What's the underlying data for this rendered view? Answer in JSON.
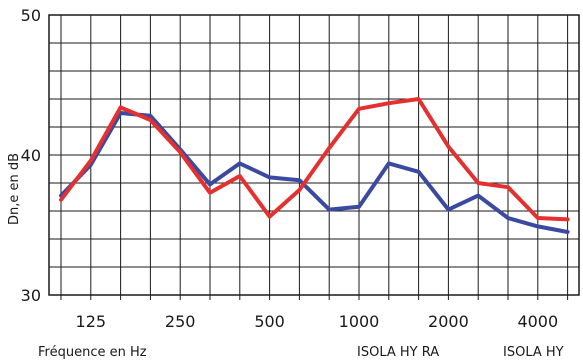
{
  "chart_data": {
    "type": "line",
    "xlabel": "Fréquence en Hz",
    "ylabel": "Dn,e en dB",
    "ylim": [
      30,
      50
    ],
    "x": [
      100,
      125,
      160,
      200,
      250,
      315,
      400,
      500,
      630,
      800,
      1000,
      1250,
      1600,
      2000,
      2500,
      3150,
      4000,
      5000
    ],
    "x_tick_labels": [
      "125",
      "250",
      "500",
      "1000",
      "2000",
      "4000"
    ],
    "y_ticks": [
      30,
      40,
      50
    ],
    "y_tick_labels": [
      "30",
      "40",
      "50"
    ],
    "grid": true,
    "legend_placement": "bottom-right",
    "series": [
      {
        "name": "ISOLA HY",
        "color": "#3a4aa0",
        "values": [
          37.1,
          39.3,
          43.0,
          42.8,
          40.4,
          37.9,
          39.4,
          38.4,
          38.2,
          36.1,
          36.3,
          39.4,
          38.8,
          36.1,
          37.1,
          35.5,
          34.9,
          34.5
        ]
      },
      {
        "name": "ISOLA HY RA",
        "color": "#e53030",
        "values": [
          36.8,
          39.6,
          43.4,
          42.5,
          40.2,
          37.3,
          38.5,
          35.6,
          37.5,
          40.5,
          43.3,
          43.7,
          44.0,
          40.6,
          38.0,
          37.7,
          35.5,
          35.4
        ]
      }
    ]
  }
}
